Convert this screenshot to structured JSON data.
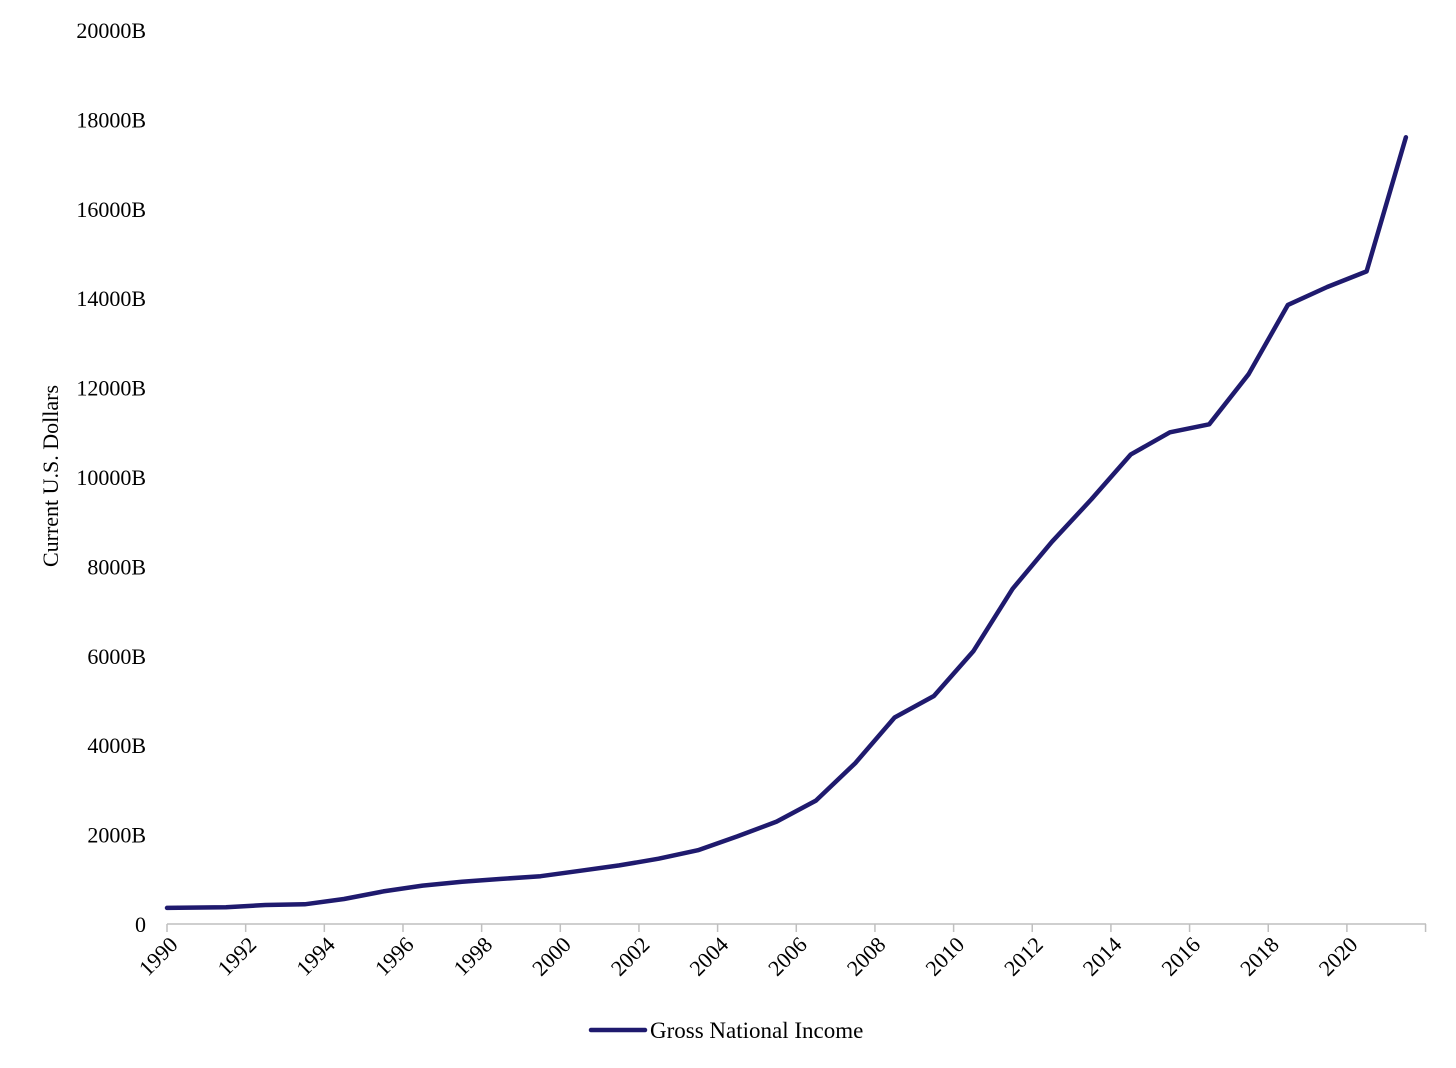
{
  "chart_data": {
    "type": "line",
    "title": "",
    "xlabel": "",
    "ylabel": "Current U.S. Dollars",
    "ylim": [
      0,
      20000
    ],
    "yticks": [
      0,
      2000,
      4000,
      6000,
      8000,
      10000,
      12000,
      14000,
      16000,
      18000,
      20000
    ],
    "ytick_labels": [
      "0",
      "2000B",
      "4000B",
      "6000B",
      "8000B",
      "10000B",
      "12000B",
      "14000B",
      "16000B",
      "18000B",
      "20000B"
    ],
    "xticks": [
      1990,
      1992,
      1994,
      1996,
      1998,
      2000,
      2002,
      2004,
      2006,
      2008,
      2010,
      2012,
      2014,
      2016,
      2018,
      2020
    ],
    "xtick_labels": [
      "1990",
      "1992",
      "1994",
      "1996",
      "1998",
      "2000",
      "2002",
      "2004",
      "2006",
      "2008",
      "2010",
      "2012",
      "2014",
      "2016",
      "2018",
      "2020"
    ],
    "grid": false,
    "legend_position": "bottom-center",
    "x": [
      1990,
      1991,
      1992,
      1993,
      1994,
      1995,
      1996,
      1997,
      1998,
      1999,
      2000,
      2001,
      2002,
      2003,
      2004,
      2005,
      2006,
      2007,
      2008,
      2009,
      2010,
      2011,
      2012,
      2013,
      2014,
      2015,
      2016,
      2017,
      2018,
      2019,
      2020,
      2021
    ],
    "series": [
      {
        "name": "Gross National Income",
        "color": "#1f1a6e",
        "values": [
          360,
          375,
          425,
          440,
          560,
          730,
          860,
          945,
          1010,
          1070,
          1190,
          1310,
          1460,
          1650,
          1960,
          2290,
          2760,
          3600,
          4620,
          5100,
          6100,
          7500,
          8550,
          9500,
          10500,
          11000,
          11180,
          12300,
          13850,
          14250,
          14600,
          17600
        ]
      }
    ]
  }
}
